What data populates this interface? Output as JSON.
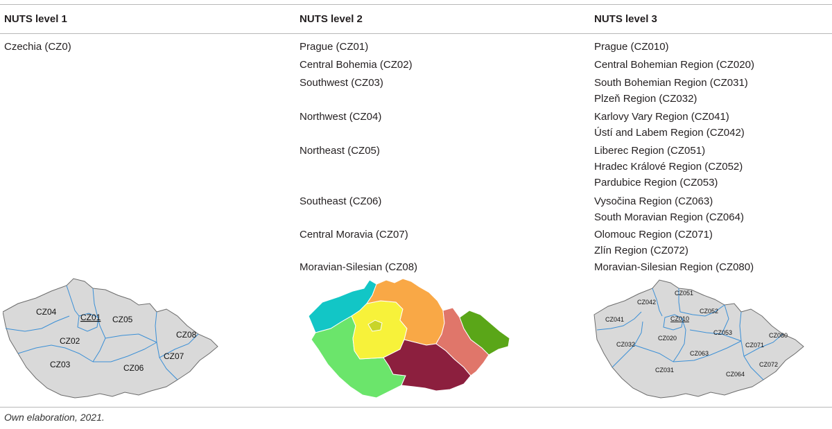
{
  "table": {
    "headers": [
      "NUTS level 1",
      "NUTS level 2",
      "NUTS level 3"
    ],
    "level1": [
      "Czechia (CZ0)"
    ],
    "level2": [
      "Prague (CZ01)",
      "Central Bohemia (CZ02)",
      "Southwest (CZ03)",
      "Northwest (CZ04)",
      "Northeast (CZ05)",
      "Southeast (CZ06)",
      "Central Moravia (CZ07)",
      "Moravian-Silesian (CZ08)"
    ],
    "level3": [
      "Prague (CZ010)",
      "Central Bohemian Region (CZ020)",
      "South Bohemian Region (CZ031)",
      "Plzeň Region (CZ032)",
      "Karlovy Vary Region (CZ041)",
      "Ústí and Labem Region (CZ042)",
      "Liberec Region (CZ051)",
      "Hradec Králové Region (CZ052)",
      "Pardubice Region (CZ053)",
      "Vysočina Region (CZ063)",
      "South Moravian Region (CZ064)",
      "Olomouc Region (CZ071)",
      "Zlín Region (CZ072)",
      "Moravian-Silesian Region (CZ080)"
    ]
  },
  "maps": {
    "level1_labels": [
      "CZ04",
      "CZ01",
      "CZ05",
      "CZ02",
      "CZ08",
      "CZ03",
      "CZ07",
      "CZ06"
    ],
    "level3_labels": [
      "CZ051",
      "CZ042",
      "CZ041",
      "CZ010",
      "CZ052",
      "CZ020",
      "CZ053",
      "CZ080",
      "CZ032",
      "CZ071",
      "CZ063",
      "CZ072",
      "CZ031",
      "CZ064"
    ],
    "colors": {
      "map_fill": "#d9d9d9",
      "border": "#3a8fd6",
      "prague": "#c8d42a",
      "central_bohemia": "#f7f23a",
      "southwest": "#6be56b",
      "northwest": "#12c6c6",
      "northeast": "#f9a846",
      "southeast": "#8c1f3e",
      "central_moravia": "#e0766a",
      "moravian_silesian": "#5aa618"
    }
  },
  "footnote": "Own elaboration, 2021."
}
